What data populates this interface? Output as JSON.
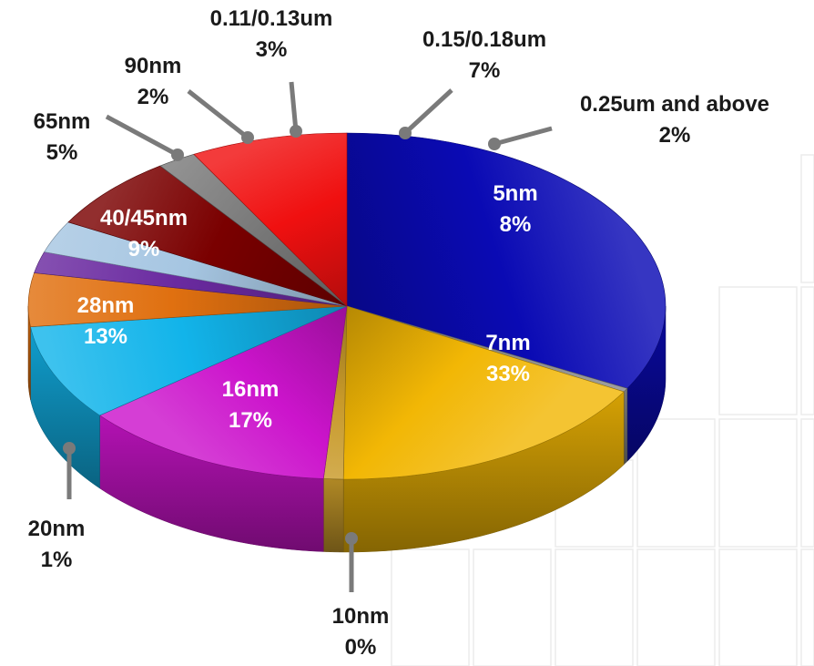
{
  "chart_data": {
    "type": "pie",
    "title": "",
    "legend": "none",
    "slices": [
      {
        "label": "7nm",
        "value_text": "33%",
        "value": 33,
        "color": "#0a0ab4"
      },
      {
        "label": "10nm",
        "value_text": "0%",
        "value": 0,
        "color": "#8a8a8a"
      },
      {
        "label": "16nm",
        "value_text": "17%",
        "value": 17,
        "color": "#f2b705"
      },
      {
        "label": "20nm",
        "value_text": "1%",
        "value": 1,
        "color": "#c89a2a"
      },
      {
        "label": "28nm",
        "value_text": "13%",
        "value": 13,
        "color": "#cc14cc"
      },
      {
        "label": "40/45nm",
        "value_text": "9%",
        "value": 9,
        "color": "#12b4ea"
      },
      {
        "label": "65nm",
        "value_text": "5%",
        "value": 5,
        "color": "#e07010"
      },
      {
        "label": "90nm",
        "value_text": "2%",
        "value": 2,
        "color": "#6a2aa0"
      },
      {
        "label": "0.11/0.13um",
        "value_text": "3%",
        "value": 3,
        "color": "#a6c6e2"
      },
      {
        "label": "0.15/0.18um",
        "value_text": "7%",
        "value": 7,
        "color": "#7a0000"
      },
      {
        "label": "0.25um and above",
        "value_text": "2%",
        "value": 2,
        "color": "#7a7a7a"
      },
      {
        "label": "5nm",
        "value_text": "8%",
        "value": 8,
        "color": "#f01010"
      }
    ]
  }
}
